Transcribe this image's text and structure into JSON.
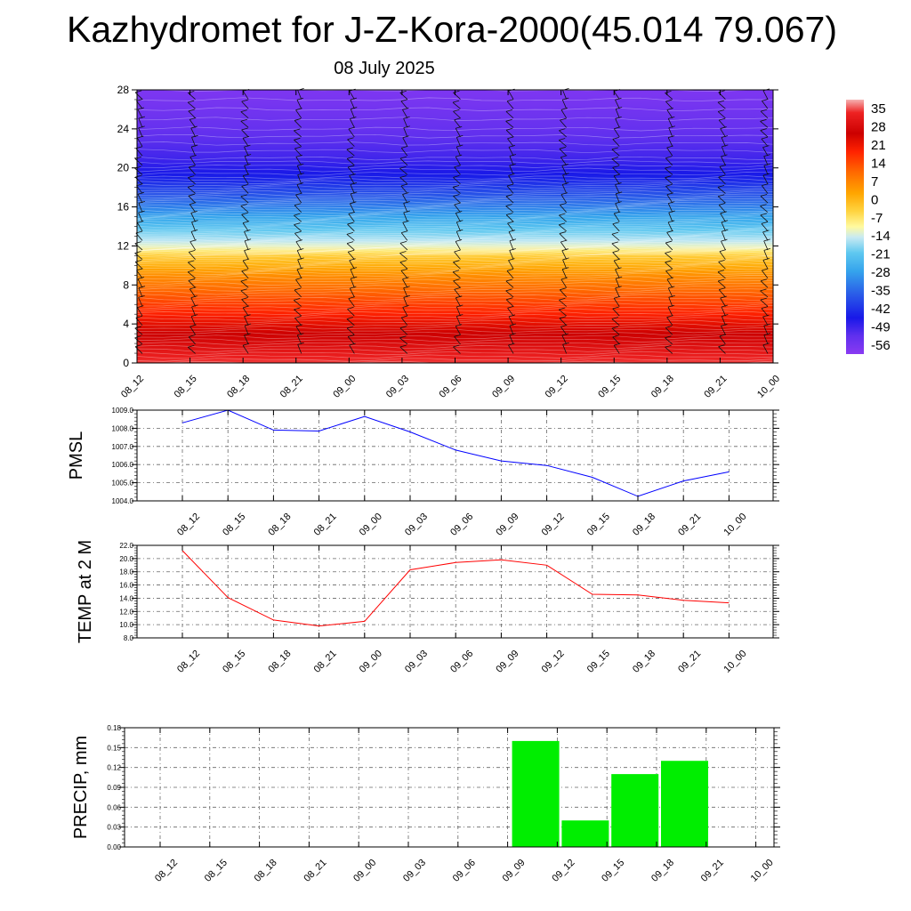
{
  "header": {
    "title": "Kazhydromet for J-Z-Kora-2000(45.014 79.067)",
    "subtitle": "08 July 2025"
  },
  "time_labels": [
    "08_12",
    "08_15",
    "08_18",
    "08_21",
    "09_00",
    "09_03",
    "09_06",
    "09_09",
    "09_12",
    "09_15",
    "09_18",
    "09_21",
    "10_00"
  ],
  "chart_data": [
    {
      "type": "heatmap",
      "id": "upper-air",
      "title": "",
      "xlabel": "",
      "ylabel": "",
      "x": [
        "08_12",
        "08_15",
        "08_18",
        "08_21",
        "09_00",
        "09_03",
        "09_06",
        "09_09",
        "09_12",
        "09_15",
        "09_18",
        "09_21",
        "10_00"
      ],
      "ylim": [
        0,
        28
      ],
      "yticks": [
        0,
        4,
        8,
        12,
        16,
        20,
        24,
        28
      ],
      "colorbar": {
        "labels": [
          "35",
          "28",
          "21",
          "14",
          "7",
          "0",
          "-7",
          "-14",
          "-21",
          "-28",
          "-35",
          "-42",
          "-49",
          "-56"
        ],
        "range": [
          -60,
          38
        ],
        "stops": [
          {
            "v": 38,
            "c": "#f5b2b2"
          },
          {
            "v": 33,
            "c": "#ee2222"
          },
          {
            "v": 25,
            "c": "#cc0000"
          },
          {
            "v": 18,
            "c": "#ff2200"
          },
          {
            "v": 10,
            "c": "#ff6a00"
          },
          {
            "v": 2,
            "c": "#ffa500"
          },
          {
            "v": -5,
            "c": "#ffd440"
          },
          {
            "v": -11,
            "c": "#fffaa0"
          },
          {
            "v": -15,
            "c": "#c8eaf2"
          },
          {
            "v": -21,
            "c": "#5fc8f0"
          },
          {
            "v": -28,
            "c": "#35a4ec"
          },
          {
            "v": -37,
            "c": "#2a5ce8"
          },
          {
            "v": -46,
            "c": "#1818e8"
          },
          {
            "v": -53,
            "c": "#6030ee"
          },
          {
            "v": -60,
            "c": "#8a3af2"
          }
        ]
      },
      "profile": [
        {
          "h": 0,
          "t": 34
        },
        {
          "h": 3,
          "t": 25
        },
        {
          "h": 6,
          "t": 15
        },
        {
          "h": 9,
          "t": 5
        },
        {
          "h": 11,
          "t": -4
        },
        {
          "h": 12,
          "t": -13
        },
        {
          "h": 13,
          "t": -18
        },
        {
          "h": 15,
          "t": -28
        },
        {
          "h": 17,
          "t": -37
        },
        {
          "h": 19,
          "t": -45
        },
        {
          "h": 21,
          "t": -50
        },
        {
          "h": 24,
          "t": -54
        },
        {
          "h": 28,
          "t": -58
        }
      ],
      "contour_step": 1
    },
    {
      "type": "line",
      "id": "pmsl",
      "title": "",
      "xlabel": "",
      "ylabel": "PMSL",
      "x": [
        "08_12",
        "08_15",
        "08_18",
        "08_21",
        "09_00",
        "09_03",
        "09_06",
        "09_09",
        "09_12",
        "09_15",
        "09_18",
        "09_21",
        "10_00"
      ],
      "ylim": [
        1004.0,
        1009.0
      ],
      "yticks": [
        "1004.0",
        "1005.0",
        "1006.0",
        "1007.0",
        "1008.0",
        "1009.0"
      ],
      "series": [
        {
          "color": "#0000ff",
          "values": [
            1008.3,
            1009.0,
            1007.9,
            1007.85,
            1008.65,
            1007.8,
            1006.8,
            1006.2,
            1005.95,
            1005.3,
            1004.25,
            1005.1,
            1005.6
          ]
        }
      ]
    },
    {
      "type": "line",
      "id": "temp",
      "title": "",
      "xlabel": "",
      "ylabel": "TEMP at 2 M",
      "x": [
        "08_12",
        "08_15",
        "08_18",
        "08_21",
        "09_00",
        "09_03",
        "09_06",
        "09_09",
        "09_12",
        "09_15",
        "09_18",
        "09_21",
        "10_00"
      ],
      "ylim": [
        8.0,
        22.0
      ],
      "yticks": [
        "8.0",
        "10.0",
        "12.0",
        "14.0",
        "16.0",
        "18.0",
        "20.0",
        "22.0"
      ],
      "series": [
        {
          "color": "#ff0000",
          "values": [
            21.2,
            14.1,
            10.7,
            9.8,
            10.5,
            18.3,
            19.4,
            19.8,
            19.0,
            14.6,
            14.5,
            13.7,
            13.3
          ]
        }
      ]
    },
    {
      "type": "bar",
      "id": "precip",
      "title": "",
      "xlabel": "",
      "ylabel": "PRECIP, mm",
      "x": [
        "08_12",
        "08_15",
        "08_18",
        "08_21",
        "09_00",
        "09_03",
        "09_06",
        "09_09",
        "09_12",
        "09_15",
        "09_18",
        "09_21",
        "10_00"
      ],
      "ylim": [
        0.0,
        0.18
      ],
      "yticks": [
        "0.00",
        "0.03",
        "0.06",
        "0.09",
        "0.12",
        "0.15",
        "0.18"
      ],
      "series": [
        {
          "color": "#00ee00",
          "values": [
            0,
            0,
            0,
            0,
            0,
            0,
            0,
            0.16,
            0.04,
            0.11,
            0.13,
            0,
            0
          ]
        }
      ]
    }
  ]
}
